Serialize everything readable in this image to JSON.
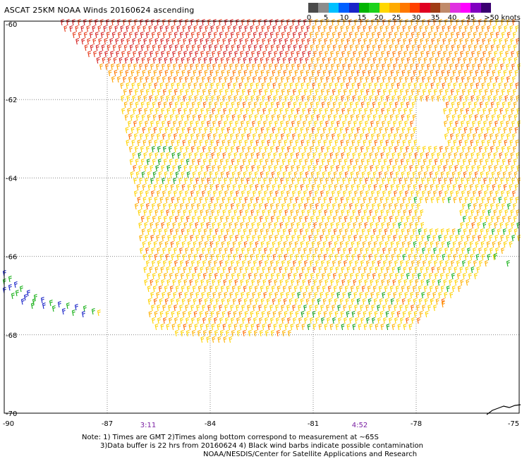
{
  "title": "ASCAT 25KM NOAA Winds 20160624 ascending",
  "colorbar": {
    "colors": [
      "#4a4a4a",
      "#8c8c8c",
      "#00c0ff",
      "#0060ff",
      "#1a24c8",
      "#00b400",
      "#1cd21c",
      "#ffd700",
      "#ffaa00",
      "#ff7800",
      "#ff4000",
      "#e00020",
      "#a03c14",
      "#c08a6a",
      "#e030e0",
      "#ff00ff",
      "#8000c0",
      "#3a0070"
    ],
    "labels": [
      "0",
      "5",
      "10",
      "15",
      "20",
      "25",
      "30",
      "35",
      "40",
      "45",
      ">50 knots"
    ],
    "unit": "knots"
  },
  "chart_data": {
    "type": "scatter",
    "title": "ASCAT 25KM NOAA Winds 20160624 ascending",
    "x_ticks": [
      "-90",
      "-87",
      "-84",
      "-81",
      "-78",
      "-75"
    ],
    "y_ticks": [
      "-60",
      "-62",
      "-64",
      "-66",
      "-68",
      "-70"
    ],
    "xlim": [
      -90,
      -75
    ],
    "ylim": [
      -70,
      -60
    ],
    "grid": true
  },
  "times": [
    "3:11",
    "4:52"
  ],
  "notes": [
    "Note: 1) Times are GMT 2)Times along bottom correspond to measurement at ~65S",
    "3)Data buffer is 22 hrs from 20160624 4) Black wind barbs indicate possible contamination",
    "NOAA/NESDIS/Center for Satellite Applications and Research"
  ]
}
